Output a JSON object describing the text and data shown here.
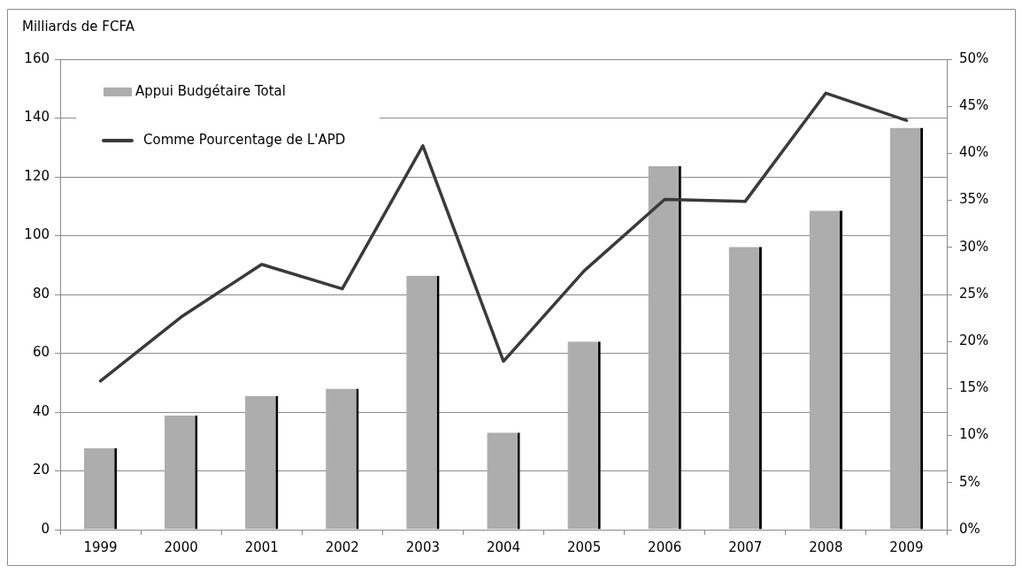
{
  "chart_data": {
    "type": "bar",
    "ylabel": "Milliards de FCFA",
    "categories": [
      "1999",
      "2000",
      "2001",
      "2002",
      "2003",
      "2004",
      "2005",
      "2006",
      "2007",
      "2008",
      "2009"
    ],
    "series": [
      {
        "name": "Appui Budgétaire Total",
        "color": "#adadad",
        "values": [
          27.7,
          38.8,
          45.4,
          48.0,
          86.3,
          33.0,
          64.0,
          123.6,
          96.2,
          108.5,
          136.7
        ]
      },
      {
        "name": "Comme Pourcentage de L'APD",
        "type": "line",
        "axis": "y2",
        "color": "#3a3a3a",
        "values": [
          15.8,
          22.6,
          28.2,
          25.6,
          40.8,
          17.9,
          27.5,
          35.1,
          34.9,
          46.4,
          43.5
        ]
      }
    ],
    "ylim": [
      0,
      160
    ],
    "yticks": [
      0,
      20,
      40,
      60,
      80,
      100,
      120,
      140,
      160
    ],
    "y2lim": [
      0,
      50
    ],
    "y2ticks": [
      {
        "value": 0,
        "label": "0%"
      },
      {
        "value": 5,
        "label": "5%"
      },
      {
        "value": 10,
        "label": "10%"
      },
      {
        "value": 15,
        "label": "15%"
      },
      {
        "value": 20,
        "label": "20%"
      },
      {
        "value": 25,
        "label": "25%"
      },
      {
        "value": 30,
        "label": "30%"
      },
      {
        "value": 35,
        "label": "35%"
      },
      {
        "value": 40,
        "label": "40%"
      },
      {
        "value": 45,
        "label": "45%"
      },
      {
        "value": 50,
        "label": "50%"
      }
    ],
    "grid": "y",
    "legend": "top left",
    "marker": "none"
  }
}
